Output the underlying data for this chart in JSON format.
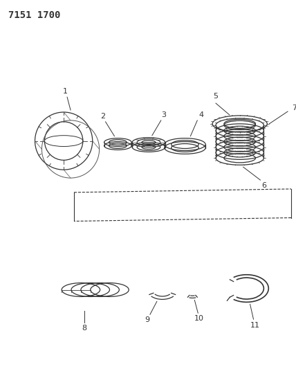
{
  "title_code": "7151 1700",
  "background_color": "#ffffff",
  "line_color": "#333333",
  "fig_width": 4.28,
  "fig_height": 5.33,
  "dpi": 100
}
